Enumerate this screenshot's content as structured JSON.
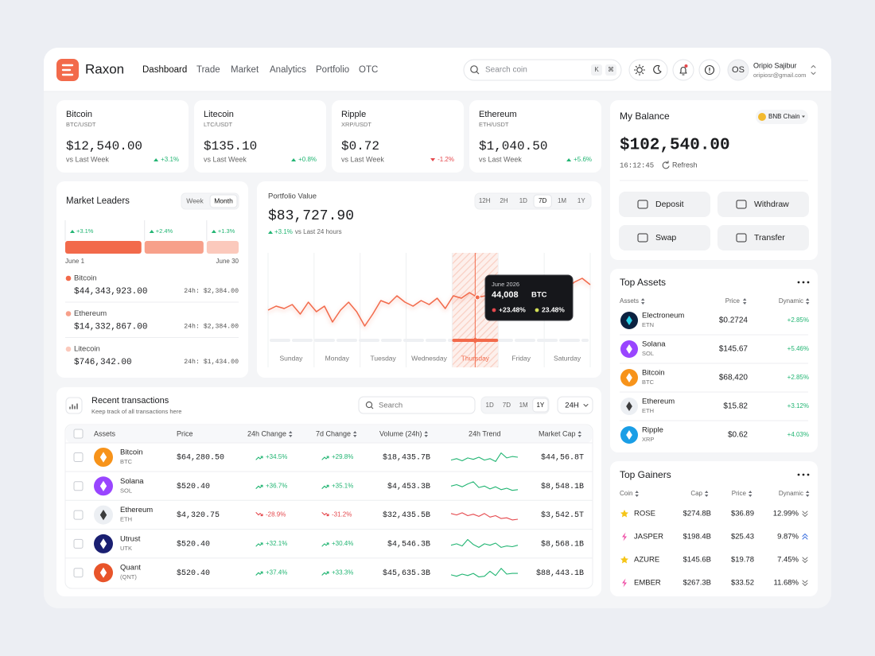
{
  "header": {
    "brand": "Raxon",
    "nav": [
      "Dashboard",
      "Trade",
      "Market",
      "Analytics",
      "Portfolio",
      "OTC"
    ],
    "search": "Search coin",
    "keys": [
      "K",
      "⌘"
    ],
    "user": {
      "initials": "OS",
      "name": "Oripio Sajibur",
      "email": "oripiosr@gmail.com"
    }
  },
  "tickers": [
    {
      "name": "Bitcoin",
      "pair": "BTC/USDT",
      "price": "$12,540.00",
      "caption": "vs Last Week",
      "change": "+3.1%"
    },
    {
      "name": "Litecoin",
      "pair": "LTC/USDT",
      "price": "$135.10",
      "caption": "vs Last Week",
      "change": "+0.8%"
    },
    {
      "name": "Ripple",
      "pair": "XRP/USDT",
      "price": "$0.72",
      "caption": "vs Last Week",
      "change": "-1.2%"
    },
    {
      "name": "Ethereum",
      "pair": "ETH/USDT",
      "price": "$1,040.50",
      "caption": "vs Last Week",
      "change": "+5.6%"
    }
  ],
  "market_leaders": {
    "title": "Market Leaders",
    "tabs": [
      "Week",
      "Month"
    ],
    "active_tab": 1,
    "bars": [
      {
        "value": 3.1,
        "label": "+3.1%",
        "color": "#f26a4b"
      },
      {
        "value": 2.4,
        "label": "+2.4%",
        "color": "#f7a08a"
      },
      {
        "value": 1.3,
        "label": "+1.3%",
        "color": "#fbc9bc"
      }
    ],
    "start": "June 1",
    "end": "June 30",
    "items": [
      {
        "name": "Bitcoin",
        "value": "$44,343,923.00",
        "change": "24h: $2,384.00",
        "color": "#f26a4b"
      },
      {
        "name": "Ethereum",
        "value": "$14,332,867.00",
        "change": "24h: $2,384.00",
        "color": "#f7a08a"
      },
      {
        "name": "Litecoin",
        "value": "$746,342.00",
        "change": "24h: $1,434.00",
        "color": "#fbc9bc"
      }
    ]
  },
  "portfolio": {
    "label": "Portfolio Value",
    "value": "$83,727.90",
    "change": "+3.1%",
    "caption": "vs Last 24 hours",
    "ranges": [
      "12H",
      "2H",
      "1D",
      "7D",
      "1M",
      "1Y"
    ],
    "active_range": 3,
    "days": [
      "Sunday",
      "Monday",
      "Tuesday",
      "Wednesday",
      "Thursday",
      "Friday",
      "Saturday"
    ],
    "active_day": 4,
    "line": [
      38,
      43,
      40,
      45,
      33,
      48,
      36,
      43,
      23,
      38,
      48,
      36,
      18,
      33,
      50,
      46,
      56,
      48,
      43,
      50,
      45,
      53,
      40,
      56,
      53,
      60,
      54,
      56,
      43,
      60,
      56,
      53,
      63,
      56,
      68,
      70,
      78,
      63,
      73,
      78,
      70
    ],
    "tooltip_index": 26,
    "tooltip": {
      "date": "June 2026",
      "value": "44,008",
      "unit": "BTC",
      "change_a": "+23.48%",
      "change_b": "23.48%"
    }
  },
  "transactions": {
    "title": "Recent transactions",
    "subtitle": "Keep track of all transactions here",
    "search": "Search",
    "ranges": [
      "1D",
      "7D",
      "1M",
      "1Y"
    ],
    "active_range": 3,
    "period": "24H",
    "columns": [
      "Assets",
      "Price",
      "24h Change",
      "7d Change",
      "Volume (24h)",
      "24h Trend",
      "Market Cap"
    ],
    "rows": [
      {
        "name": "Bitcoin",
        "symbol": "BTC",
        "price": "$64,280.50",
        "change_24h": "+34.5%",
        "change_7d": "+29.8%",
        "volume": "$18,435.7B",
        "trend": [
          6,
          8,
          5,
          9,
          7,
          10,
          6,
          8,
          4,
          16,
          9,
          11,
          10
        ],
        "market_cap": "$44,56.8T",
        "color": "#f7931a",
        "glyph": "#ffffff"
      },
      {
        "name": "Solana",
        "symbol": "SOL",
        "price": "$520.40",
        "change_24h": "+36.7%",
        "change_7d": "+35.1%",
        "volume": "$4,453.3B",
        "trend": [
          10,
          12,
          9,
          13,
          16,
          8,
          10,
          6,
          9,
          5,
          7,
          4,
          5
        ],
        "market_cap": "$8,548.1B",
        "color": "#9945ff",
        "glyph": "#ffffff"
      },
      {
        "name": "Ethereum",
        "symbol": "ETH",
        "price": "$4,320.75",
        "change_24h": "-28.9%",
        "change_7d": "-31.2%",
        "volume": "$32,435.5B",
        "trend": [
          12,
          10,
          13,
          9,
          11,
          8,
          12,
          7,
          9,
          5,
          6,
          3,
          4
        ],
        "market_cap": "$3,542.5T",
        "color": "#eceff3",
        "glyph": "#3c3c3d"
      },
      {
        "name": "Utrust",
        "symbol": "UTK",
        "price": "$520.40",
        "change_24h": "+32.1%",
        "change_7d": "+30.4%",
        "volume": "$4,546.3B",
        "trend": [
          8,
          10,
          7,
          16,
          9,
          5,
          10,
          8,
          11,
          5,
          7,
          6,
          8
        ],
        "market_cap": "$8,568.1B",
        "color": "#1a1f71",
        "glyph": "#ffffff"
      },
      {
        "name": "Quant",
        "symbol": "(QNT)",
        "price": "$520.40",
        "change_24h": "+37.4%",
        "change_7d": "+33.3%",
        "volume": "$45,635.3B",
        "trend": [
          7,
          5,
          8,
          6,
          9,
          4,
          5,
          12,
          6,
          16,
          8,
          9,
          9
        ],
        "market_cap": "$88,443.1B",
        "color": "#e8542a",
        "glyph": "#ffffff"
      }
    ]
  },
  "balance": {
    "title": "My Balance",
    "chain": "BNB Chain",
    "amount": "$102,540.00",
    "time": "16:12:45",
    "refresh": "Refresh",
    "actions": [
      "Deposit",
      "Withdraw",
      "Swap",
      "Transfer"
    ]
  },
  "top_assets": {
    "title": "Top Assets",
    "columns": [
      "Assets",
      "Price",
      "Dynamic"
    ],
    "rows": [
      {
        "name": "Electroneum",
        "symbol": "ETN",
        "price": "$0.2724",
        "change": "+2.85%",
        "color": "#0b2140",
        "glyph": "#2ad2e8"
      },
      {
        "name": "Solana",
        "symbol": "SOL",
        "price": "$145.67",
        "change": "+5.46%",
        "color": "#9945ff",
        "glyph": "#ffffff"
      },
      {
        "name": "Bitcoin",
        "symbol": "BTC",
        "price": "$68,420",
        "change": "+2.85%",
        "color": "#f7931a",
        "glyph": "#ffffff"
      },
      {
        "name": "Ethereum",
        "symbol": "ETH",
        "price": "$15.82",
        "change": "+3.12%",
        "color": "#eceff3",
        "glyph": "#3c3c3d"
      },
      {
        "name": "Ripple",
        "symbol": "XRP",
        "price": "$0.62",
        "change": "+4.03%",
        "color": "#1a9ee6",
        "glyph": "#ffffff"
      }
    ]
  },
  "top_gainers": {
    "title": "Top Gainers",
    "columns": [
      "Coin",
      "Cap",
      "Price",
      "Dynamic"
    ],
    "rows": [
      {
        "name": "ROSE",
        "cap": "$274.8B",
        "price": "$36.89",
        "change": "12.99%",
        "icon": "star",
        "direction": "down"
      },
      {
        "name": "JASPER",
        "cap": "$198.4B",
        "price": "$25.43",
        "change": "9.87%",
        "icon": "bolt",
        "direction": "up"
      },
      {
        "name": "AZURE",
        "cap": "$145.6B",
        "price": "$19.78",
        "change": "7.45%",
        "icon": "star",
        "direction": "down"
      },
      {
        "name": "EMBER",
        "cap": "$267.3B",
        "price": "$33.52",
        "change": "11.68%",
        "icon": "bolt",
        "direction": "down"
      }
    ]
  }
}
